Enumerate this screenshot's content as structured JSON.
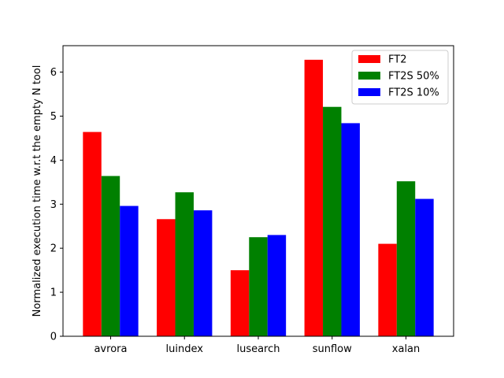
{
  "chart_data": {
    "type": "bar",
    "title": "",
    "xlabel": "",
    "ylabel": "Normalized execution time w.r.t the empty N tool",
    "categories": [
      "avrora",
      "luindex",
      "lusearch",
      "sunflow",
      "xalan"
    ],
    "series": [
      {
        "name": "FT2",
        "color": "#ff0000",
        "values": [
          4.64,
          2.66,
          1.5,
          6.28,
          2.1
        ]
      },
      {
        "name": "FT2S 50%",
        "color": "#008000",
        "values": [
          3.64,
          3.27,
          2.25,
          5.21,
          3.52
        ]
      },
      {
        "name": "FT2S 10%",
        "color": "#0000ff",
        "values": [
          2.96,
          2.86,
          2.3,
          4.84,
          3.12
        ]
      }
    ],
    "ylim": [
      0,
      6.6
    ],
    "yticks": [
      "0",
      "1",
      "2",
      "3",
      "4",
      "5",
      "6"
    ],
    "legend_position": "top-right",
    "grid": false
  }
}
